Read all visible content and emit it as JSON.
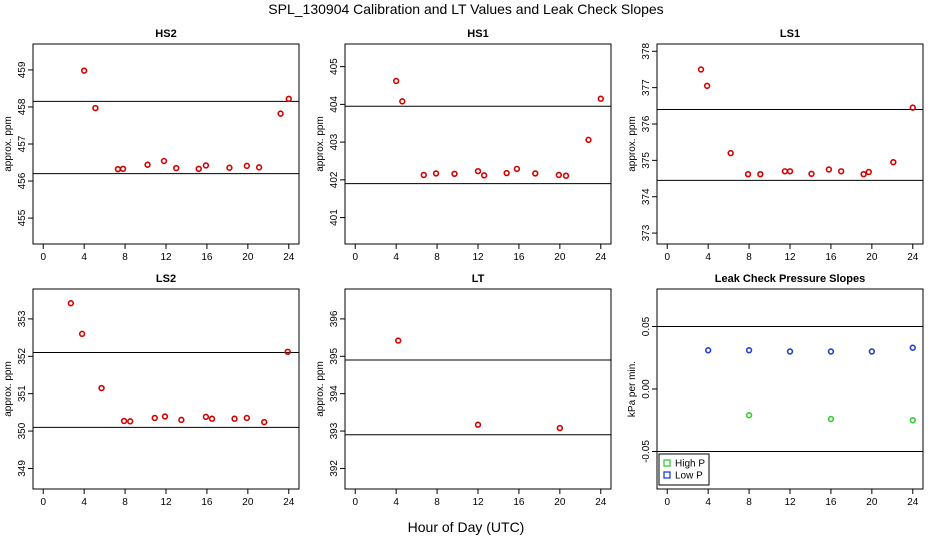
{
  "figure": {
    "title": "SPL_130904  Calibration and LT Values and Leak Check Slopes",
    "xlabel": "Hour of Day (UTC)"
  },
  "colors": {
    "calibration_points": "#d40000",
    "high_p": "#33cc33",
    "low_p": "#1f3fd6",
    "lines": "#000000"
  },
  "chart_data": [
    {
      "type": "scatter",
      "title": "HS2",
      "ylabel": "approx. ppm",
      "xlim": [
        -1,
        25
      ],
      "ylim": [
        454.3,
        459.7
      ],
      "xticks": [
        0,
        4,
        8,
        12,
        16,
        20,
        24
      ],
      "yticks": [
        455,
        456,
        457,
        458,
        459
      ],
      "hlines": [
        458.15,
        456.2
      ],
      "series": [
        {
          "x": [
            4.0,
            5.1,
            7.3,
            7.8,
            10.2,
            11.8,
            13.0,
            15.2,
            15.9,
            18.2,
            19.9,
            21.1,
            23.2,
            24.0
          ],
          "y": [
            458.98,
            457.97,
            456.32,
            456.33,
            456.44,
            456.54,
            456.35,
            456.33,
            456.42,
            456.36,
            456.41,
            456.37,
            457.82,
            458.22
          ]
        }
      ]
    },
    {
      "type": "scatter",
      "title": "HS1",
      "ylabel": "approx. ppm",
      "xlim": [
        -1,
        25
      ],
      "ylim": [
        400.3,
        405.6
      ],
      "xticks": [
        0,
        4,
        8,
        12,
        16,
        20,
        24
      ],
      "yticks": [
        401,
        402,
        403,
        404,
        405
      ],
      "hlines": [
        403.95,
        401.9
      ],
      "series": [
        {
          "x": [
            4.0,
            4.6,
            6.7,
            7.9,
            9.7,
            12.0,
            12.6,
            14.8,
            15.8,
            17.6,
            19.9,
            20.6,
            22.8,
            24.0
          ],
          "y": [
            404.62,
            404.08,
            402.13,
            402.17,
            402.16,
            402.23,
            402.12,
            402.18,
            402.29,
            402.17,
            402.13,
            402.11,
            403.06,
            404.15
          ]
        }
      ]
    },
    {
      "type": "scatter",
      "title": "LS1",
      "ylabel": "approx. ppm",
      "xlim": [
        -1,
        25
      ],
      "ylim": [
        372.7,
        378.2
      ],
      "xticks": [
        0,
        4,
        8,
        12,
        16,
        20,
        24
      ],
      "yticks": [
        373,
        374,
        375,
        376,
        377,
        378
      ],
      "hlines": [
        376.4,
        374.45
      ],
      "series": [
        {
          "x": [
            3.3,
            3.9,
            6.2,
            7.9,
            9.1,
            11.5,
            12.0,
            14.1,
            15.8,
            17.0,
            19.2,
            19.7,
            22.1,
            24.0
          ],
          "y": [
            377.5,
            377.05,
            375.2,
            374.62,
            374.62,
            374.7,
            374.7,
            374.63,
            374.75,
            374.7,
            374.62,
            374.68,
            374.95,
            376.45
          ]
        }
      ]
    },
    {
      "type": "scatter",
      "title": "LS2",
      "ylabel": "approx. ppm",
      "xlim": [
        -1,
        25
      ],
      "ylim": [
        348.45,
        353.8
      ],
      "xticks": [
        0,
        4,
        8,
        12,
        16,
        20,
        24
      ],
      "yticks": [
        349,
        350,
        351,
        352,
        353
      ],
      "hlines": [
        352.1,
        350.1
      ],
      "series": [
        {
          "x": [
            2.7,
            3.8,
            5.7,
            7.9,
            8.5,
            10.9,
            11.9,
            13.5,
            15.9,
            16.5,
            18.7,
            19.9,
            21.6,
            23.9
          ],
          "y": [
            353.42,
            352.6,
            351.15,
            350.27,
            350.26,
            350.35,
            350.39,
            350.3,
            350.38,
            350.33,
            350.33,
            350.35,
            350.24,
            352.12
          ]
        }
      ]
    },
    {
      "type": "scatter",
      "title": "LT",
      "ylabel": "approx. ppm",
      "xlim": [
        -1,
        25
      ],
      "ylim": [
        391.45,
        396.8
      ],
      "xticks": [
        0,
        4,
        8,
        12,
        16,
        20,
        24
      ],
      "yticks": [
        392,
        393,
        394,
        395,
        396
      ],
      "hlines": [
        394.9,
        392.9
      ],
      "series": [
        {
          "x": [
            4.2,
            12.0,
            20.0
          ],
          "y": [
            395.42,
            393.17,
            393.08
          ]
        }
      ]
    },
    {
      "type": "scatter",
      "title": "Leak Check Pressure Slopes",
      "ylabel": "kPa per min.",
      "xlim": [
        -1,
        25
      ],
      "ylim": [
        -0.08,
        0.08
      ],
      "xticks": [
        0,
        4,
        8,
        12,
        16,
        20,
        24
      ],
      "yticks": [
        -0.05,
        0.0,
        0.05
      ],
      "ytick_labels": [
        "-0.05",
        "0.00",
        "0.05"
      ],
      "hlines": [
        0.05,
        -0.05
      ],
      "legend_position": "bottom-left",
      "series": [
        {
          "name": "High P",
          "x": [
            8,
            16,
            24
          ],
          "y": [
            -0.021,
            -0.024,
            -0.025
          ]
        },
        {
          "name": "Low P",
          "x": [
            4,
            8,
            12,
            16,
            20,
            24
          ],
          "y": [
            0.031,
            0.031,
            0.03,
            0.03,
            0.03,
            0.033
          ]
        }
      ]
    }
  ]
}
